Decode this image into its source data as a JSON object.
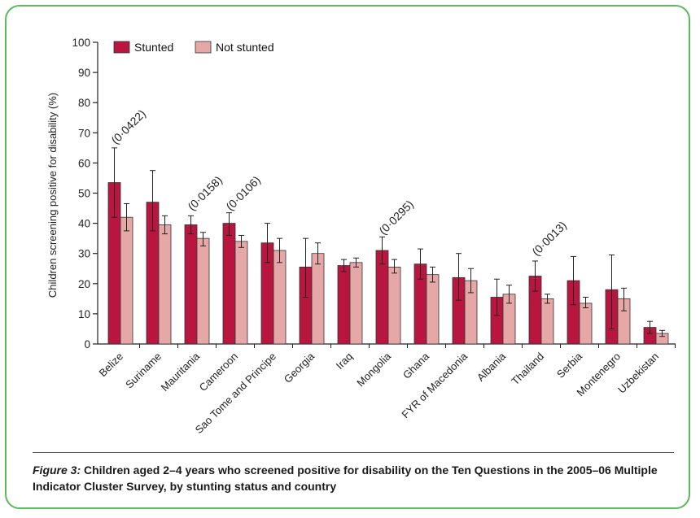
{
  "chart_data": {
    "type": "bar",
    "ylabel": "Children screening positive for disability (%)",
    "ylim": [
      0,
      100
    ],
    "yticks": [
      0,
      10,
      20,
      30,
      40,
      50,
      60,
      70,
      80,
      90,
      100
    ],
    "grid": false,
    "legend_position": "top-left",
    "categories": [
      "Belize",
      "Suriname",
      "Mauritania",
      "Cameroon",
      "Sao Tome and Principe",
      "Georgia",
      "Iraq",
      "Mongolia",
      "Ghana",
      "FYR of Macedonia",
      "Albania",
      "Thailand",
      "Serbia",
      "Montenegro",
      "Uzbekistan"
    ],
    "series": [
      {
        "name": "Stunted",
        "color": "#b8163f",
        "values": [
          53.5,
          47,
          39.5,
          40,
          33.5,
          25.5,
          26,
          31,
          26.5,
          22,
          15.5,
          22.5,
          21,
          18,
          5.5
        ],
        "err_low": [
          42,
          37.5,
          36.5,
          36,
          27,
          15.5,
          24,
          26.5,
          21.5,
          14.5,
          9.5,
          17.5,
          13,
          5,
          3.5
        ],
        "err_high": [
          65,
          57.5,
          42.5,
          43.5,
          40,
          35,
          28,
          35.5,
          31.5,
          30,
          21.5,
          27.5,
          29,
          29.5,
          7.5
        ]
      },
      {
        "name": "Not stunted",
        "color": "#e6a7a7",
        "values": [
          42,
          39.5,
          35,
          34,
          31,
          30,
          27,
          25.5,
          23,
          21,
          16.5,
          15,
          13.5,
          15,
          3.5
        ],
        "err_low": [
          37.5,
          36.5,
          32.5,
          32,
          27,
          26.5,
          25.5,
          23.5,
          20.5,
          17,
          13.5,
          13.5,
          12,
          11,
          2.5
        ],
        "err_high": [
          46.5,
          42.5,
          37,
          36,
          35,
          33.5,
          28.5,
          28,
          25.5,
          25,
          19.5,
          16.5,
          15.5,
          18.5,
          4.5
        ]
      }
    ],
    "annotations": [
      {
        "category": "Belize",
        "text": "(0·0422)",
        "y": 66
      },
      {
        "category": "Mauritania",
        "text": "(0·0158)",
        "y": 44
      },
      {
        "category": "Cameroon",
        "text": "(0·0106)",
        "y": 44
      },
      {
        "category": "Mongolia",
        "text": "(0·0295)",
        "y": 36
      },
      {
        "category": "Thailand",
        "text": "(0·0013)",
        "y": 29
      }
    ]
  },
  "caption": {
    "figure_label": "Figure 3:",
    "text": "Children aged 2–4 years who screened positive for disability on the Ten Questions in the 2005–06 Multiple Indicator Cluster Survey, by stunting status and country"
  }
}
